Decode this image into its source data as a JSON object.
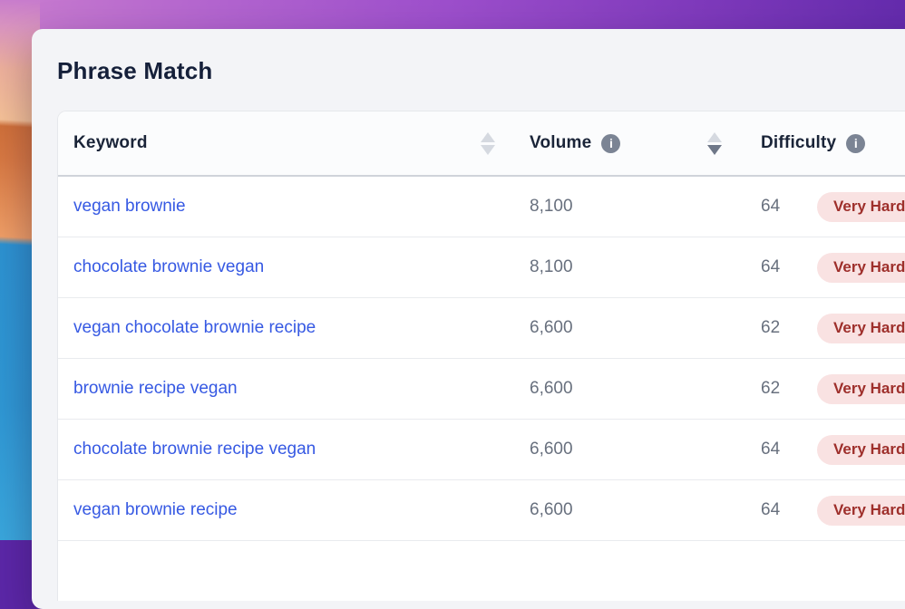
{
  "card": {
    "title": "Phrase Match"
  },
  "table": {
    "columns": [
      {
        "label": "Keyword",
        "sorter": "inactive"
      },
      {
        "label": "Volume",
        "has_info": true,
        "sorter": "desc"
      },
      {
        "label": "Difficulty",
        "has_info": true
      }
    ],
    "rows": [
      {
        "keyword": "vegan brownie",
        "volume": "8,100",
        "difficulty": "64",
        "difficulty_label": "Very Hard"
      },
      {
        "keyword": "chocolate brownie vegan",
        "volume": "8,100",
        "difficulty": "64",
        "difficulty_label": "Very Hard"
      },
      {
        "keyword": "vegan chocolate brownie recipe",
        "volume": "6,600",
        "difficulty": "62",
        "difficulty_label": "Very Hard"
      },
      {
        "keyword": "brownie recipe vegan",
        "volume": "6,600",
        "difficulty": "62",
        "difficulty_label": "Very Hard"
      },
      {
        "keyword": "chocolate brownie recipe vegan",
        "volume": "6,600",
        "difficulty": "64",
        "difficulty_label": "Very Hard"
      },
      {
        "keyword": "vegan brownie recipe",
        "volume": "6,600",
        "difficulty": "64",
        "difficulty_label": "Very Hard"
      }
    ]
  },
  "icons": {
    "info": "i"
  },
  "colors": {
    "link_blue": "#3659e3",
    "text_dark": "#15203a",
    "text_gray": "#68707e",
    "badge_bg": "#f9e2e2",
    "badge_text": "#9e2f2b",
    "card_bg": "#f3f4f7",
    "wallpaper_purple": "#5c27a8",
    "wallpaper_pink": "#c77bcd",
    "wallpaper_orange": "#d0703a",
    "wallpaper_blue": "#2d92d1"
  }
}
